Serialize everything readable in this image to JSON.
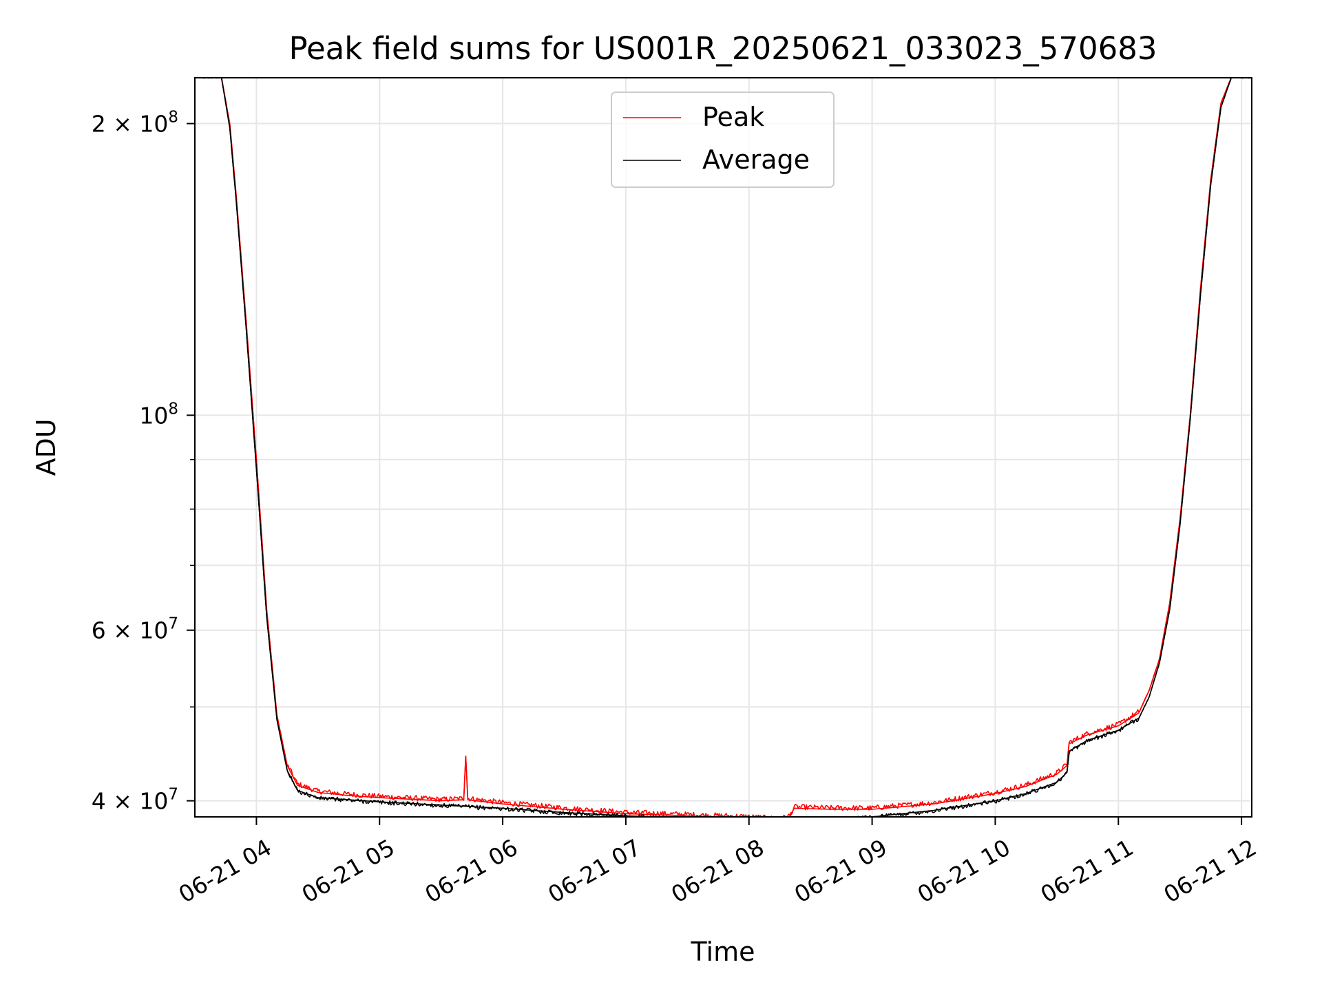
{
  "chart_data": {
    "type": "line",
    "title": "Peak field sums for US001R_20250621_033023_570683",
    "xlabel": "Time",
    "ylabel": "ADU",
    "yscale": "log",
    "xlim": [
      "06-21 03:30",
      "06-21 12:05"
    ],
    "ylim": [
      38500000,
      223000000
    ],
    "grid": true,
    "legend_position": "top-center",
    "x_ticks": [
      {
        "x": "06-21 04:00",
        "label": "06-21 04"
      },
      {
        "x": "06-21 05:00",
        "label": "06-21 05"
      },
      {
        "x": "06-21 06:00",
        "label": "06-21 06"
      },
      {
        "x": "06-21 07:00",
        "label": "06-21 07"
      },
      {
        "x": "06-21 08:00",
        "label": "06-21 08"
      },
      {
        "x": "06-21 09:00",
        "label": "06-21 09"
      },
      {
        "x": "06-21 10:00",
        "label": "06-21 10"
      },
      {
        "x": "06-21 11:00",
        "label": "06-21 11"
      },
      {
        "x": "06-21 12:00",
        "label": "06-21 12"
      }
    ],
    "y_ticks": [
      {
        "y": 40000000,
        "label": "4 × 10",
        "exp": "7"
      },
      {
        "y": 60000000,
        "label": "6 × 10",
        "exp": "7"
      },
      {
        "y": 100000000,
        "label": "10",
        "exp": "8"
      },
      {
        "y": 200000000,
        "label": "2 × 10",
        "exp": "8"
      }
    ],
    "y_minor_ticks": [
      50000000,
      70000000,
      80000000,
      90000000
    ],
    "series": [
      {
        "name": "Peak",
        "color": "#ff0000",
        "x": [
          "06-21 03:30",
          "06-21 03:43",
          "06-21 03:47",
          "06-21 03:50",
          "06-21 03:55",
          "06-21 04:00",
          "06-21 04:05",
          "06-21 04:10",
          "06-21 04:15",
          "06-21 04:20",
          "06-21 04:30",
          "06-21 04:45",
          "06-21 05:00",
          "06-21 05:30",
          "06-21 05:41",
          "06-21 05:42",
          "06-21 05:43",
          "06-21 06:00",
          "06-21 06:30",
          "06-21 07:00",
          "06-21 07:30",
          "06-21 08:00",
          "06-21 08:15",
          "06-21 08:20",
          "06-21 08:22",
          "06-21 08:40",
          "06-21 09:00",
          "06-21 09:30",
          "06-21 10:00",
          "06-21 10:15",
          "06-21 10:30",
          "06-21 10:35",
          "06-21 10:36",
          "06-21 10:45",
          "06-21 11:00",
          "06-21 11:10",
          "06-21 11:15",
          "06-21 11:20",
          "06-21 11:25",
          "06-21 11:30",
          "06-21 11:35",
          "06-21 11:40",
          "06-21 11:45",
          "06-21 11:50",
          "06-21 11:55",
          "06-21 12:05"
        ],
        "values": [
          223000000,
          223000000,
          200000000,
          170000000,
          125000000,
          90000000,
          63000000,
          49000000,
          43500000,
          41500000,
          40800000,
          40500000,
          40300000,
          40000000,
          40100000,
          44500000,
          40100000,
          39700000,
          39200000,
          38800000,
          38600000,
          38400000,
          38200000,
          38500000,
          39300000,
          39200000,
          39200000,
          39700000,
          40700000,
          41400000,
          42600000,
          43500000,
          45800000,
          46800000,
          47800000,
          49300000,
          52000000,
          56000000,
          64000000,
          78000000,
          100000000,
          135000000,
          175000000,
          210000000,
          223000000,
          223000000
        ]
      },
      {
        "name": "Average",
        "color": "#000000",
        "x": [
          "06-21 03:30",
          "06-21 03:43",
          "06-21 03:47",
          "06-21 03:50",
          "06-21 03:55",
          "06-21 04:00",
          "06-21 04:05",
          "06-21 04:10",
          "06-21 04:15",
          "06-21 04:20",
          "06-21 04:30",
          "06-21 04:45",
          "06-21 05:00",
          "06-21 05:30",
          "06-21 06:00",
          "06-21 06:30",
          "06-21 07:00",
          "06-21 07:30",
          "06-21 08:00",
          "06-21 08:15",
          "06-21 08:20",
          "06-21 08:40",
          "06-21 09:00",
          "06-21 09:30",
          "06-21 10:00",
          "06-21 10:15",
          "06-21 10:30",
          "06-21 10:35",
          "06-21 10:36",
          "06-21 10:45",
          "06-21 11:00",
          "06-21 11:10",
          "06-21 11:15",
          "06-21 11:20",
          "06-21 11:25",
          "06-21 11:30",
          "06-21 11:35",
          "06-21 11:40",
          "06-21 11:45",
          "06-21 11:50",
          "06-21 11:55",
          "06-21 12:05"
        ],
        "values": [
          223000000,
          223000000,
          198000000,
          168000000,
          123000000,
          88000000,
          62000000,
          48500000,
          43000000,
          41000000,
          40300000,
          40100000,
          39900000,
          39600000,
          39300000,
          38900000,
          38600000,
          38400000,
          38200000,
          38000000,
          38300000,
          38300000,
          38500000,
          39100000,
          40000000,
          40700000,
          41800000,
          42800000,
          45000000,
          46200000,
          47300000,
          48700000,
          51200000,
          55500000,
          63000000,
          77000000,
          99000000,
          133000000,
          173000000,
          208000000,
          223000000,
          223000000
        ]
      }
    ]
  }
}
